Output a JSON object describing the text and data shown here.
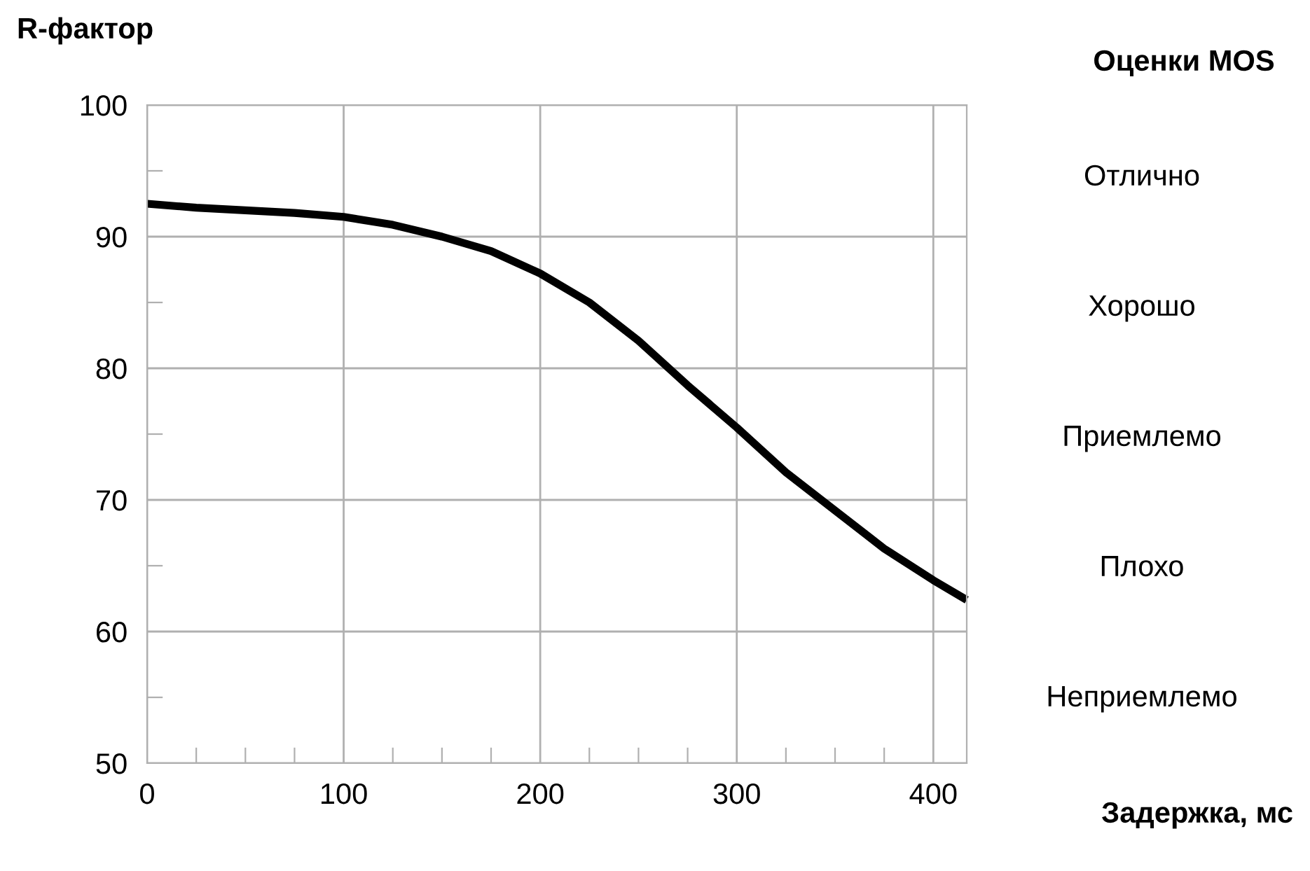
{
  "chart_data": {
    "type": "line",
    "ylabel": "R-фактор",
    "xlabel": "Задержка, мс",
    "y2label": "Оценки MOS",
    "x": [
      0,
      25,
      50,
      75,
      100,
      125,
      150,
      175,
      200,
      225,
      250,
      275,
      300,
      325,
      350,
      375,
      400,
      417
    ],
    "series": [
      {
        "color": "#000000",
        "values": [
          92.5,
          92.2,
          92.0,
          91.8,
          91.5,
          90.9,
          90.0,
          88.9,
          87.2,
          85.0,
          82.1,
          78.7,
          75.5,
          72.1,
          69.2,
          66.3,
          63.9,
          62.4
        ]
      }
    ],
    "xlim": [
      0,
      417
    ],
    "xticks": [
      0,
      {
        "value": 25,
        "label": null
      },
      {
        "value": 50,
        "label": null
      },
      {
        "value": 75,
        "label": null
      },
      100,
      {
        "value": 125,
        "label": null
      },
      {
        "value": 150,
        "label": null
      },
      {
        "value": 175,
        "label": null
      },
      200,
      {
        "value": 225,
        "label": null
      },
      {
        "value": 250,
        "label": null
      },
      {
        "value": 275,
        "label": null
      },
      300,
      {
        "value": 325,
        "label": null
      },
      {
        "value": 350,
        "label": null
      },
      {
        "value": 375,
        "label": null
      },
      400
    ],
    "ylim": [
      50,
      100
    ],
    "yticks": [
      50,
      {
        "value": 55,
        "label": null
      },
      60,
      {
        "value": 65,
        "label": null
      },
      70,
      {
        "value": 75,
        "label": null
      },
      80,
      {
        "value": 85,
        "label": null
      },
      90,
      {
        "value": 95,
        "label": null
      },
      100
    ],
    "grid": true,
    "marker": "none",
    "line_style": "solid",
    "annotations": [
      "Отлично",
      "Хорошо",
      "Приемлемо",
      "Плохо",
      "Неприемлемо"
    ]
  }
}
